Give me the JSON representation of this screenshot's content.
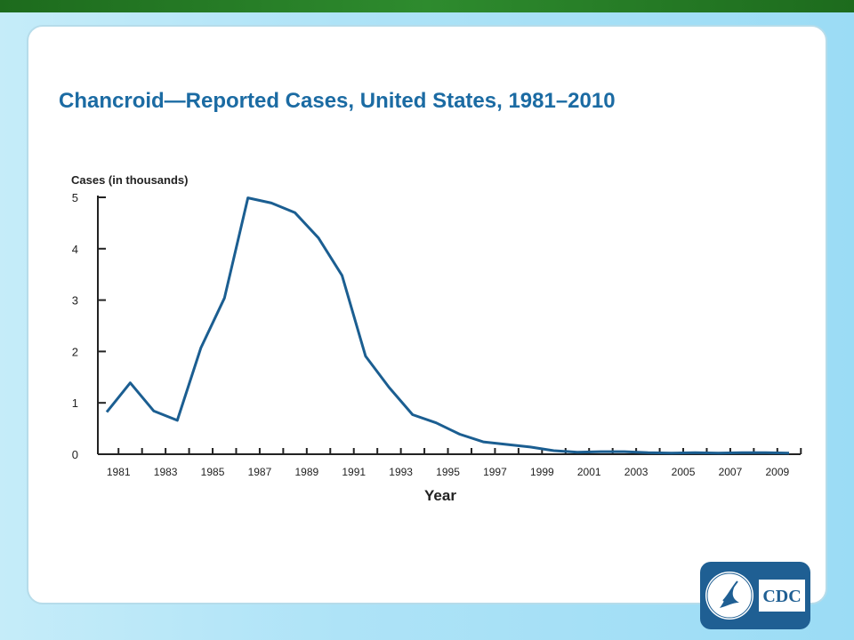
{
  "slide_title": "Chancroid—Reported Cases, United States, 1981–2010",
  "logo": {
    "name": "CDC",
    "text": "CDC",
    "emblem": "hhs-eagle-seal"
  },
  "colors": {
    "line": "#1b5e91",
    "title": "#1b6ba3",
    "top_bar": "#2e8b2e",
    "logo_bg": "#1f5f93"
  },
  "chart_data": {
    "type": "line",
    "title": "",
    "ylabel": "Cases (in thousands)",
    "xlabel": "Year",
    "ylim": [
      0,
      5
    ],
    "yticks": [
      0,
      1,
      2,
      3,
      4,
      5
    ],
    "xtick_labels": [
      "1981",
      "1983",
      "1985",
      "1987",
      "1989",
      "1991",
      "1993",
      "1995",
      "1997",
      "1999",
      "2001",
      "2003",
      "2005",
      "2007",
      "2009"
    ],
    "grid": false,
    "legend": "none",
    "x": [
      1981,
      1982,
      1983,
      1984,
      1985,
      1986,
      1987,
      1988,
      1989,
      1990,
      1991,
      1992,
      1993,
      1994,
      1995,
      1996,
      1997,
      1998,
      1999,
      2000,
      2001,
      2002,
      2003,
      2004,
      2005,
      2006,
      2007,
      2008,
      2009,
      2010
    ],
    "series": [
      {
        "values": [
          0.82,
          1.39,
          0.84,
          0.66,
          2.07,
          3.04,
          4.99,
          4.89,
          4.7,
          4.21,
          3.48,
          1.91,
          1.3,
          0.77,
          0.61,
          0.39,
          0.24,
          0.19,
          0.14,
          0.07,
          0.04,
          0.05,
          0.05,
          0.03,
          0.02,
          0.03,
          0.02,
          0.03,
          0.03,
          0.02
        ]
      }
    ]
  }
}
